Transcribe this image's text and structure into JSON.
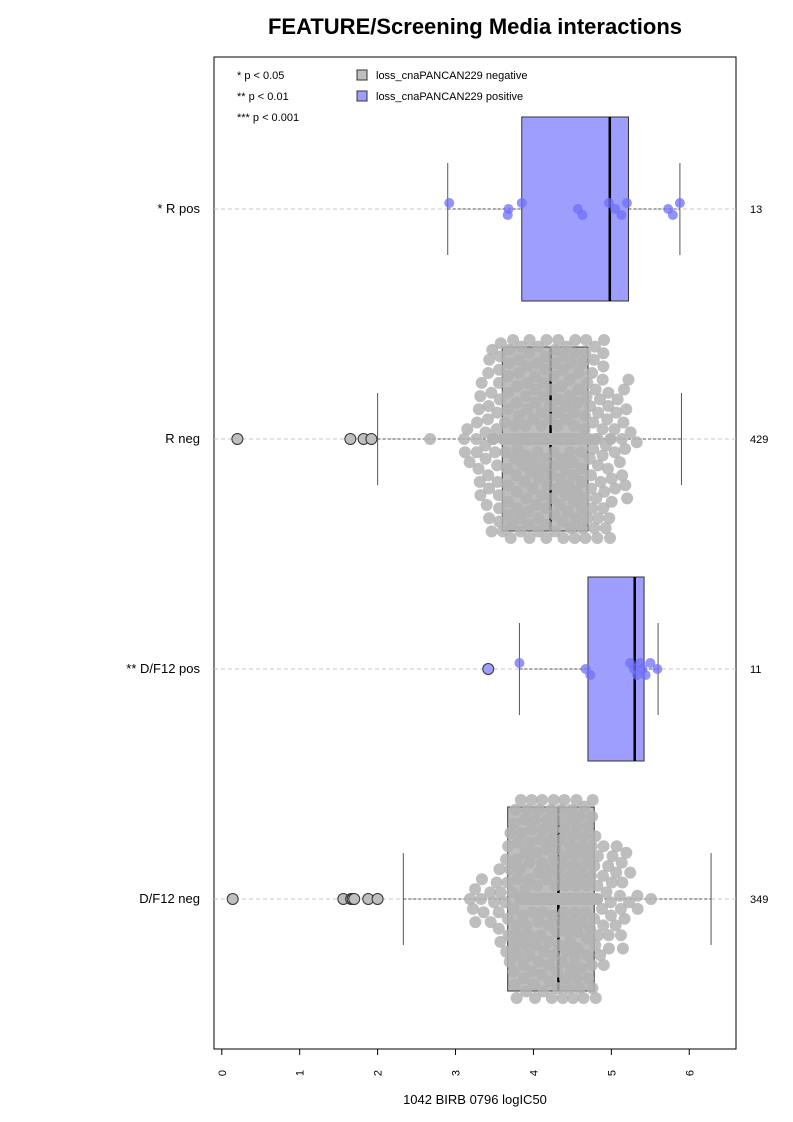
{
  "chart_data": {
    "type": "boxplot-beeswarm",
    "title": "FEATURE/Screening Media interactions",
    "xlabel": "1042 BIRB 0796 logIC50",
    "xlim": [
      -0.1,
      6.6
    ],
    "x_ticks": [
      0,
      1,
      2,
      3,
      4,
      5,
      6
    ],
    "grid": false,
    "legend": {
      "position": "top-left",
      "significance": [
        "* p < 0.05",
        "** p < 0.01",
        "*** p < 0.001"
      ],
      "entries": [
        {
          "label": "loss_cnaPANCAN229 negative",
          "color": "#bebebe"
        },
        {
          "label": "loss_cnaPANCAN229 positive",
          "color": "#9e9eff"
        }
      ]
    },
    "groups": [
      {
        "label": "* R pos",
        "n": "13",
        "status": "positive",
        "whisker_low": 2.9,
        "q1": 3.85,
        "median": 4.98,
        "q3": 5.22,
        "whisker_high": 5.88,
        "outliers": [],
        "points": [
          2.92,
          3.68,
          3.67,
          3.85,
          4.57,
          4.63,
          4.97,
          5.05,
          5.13,
          5.2,
          5.73,
          5.79,
          5.88
        ]
      },
      {
        "label": "R neg",
        "n": "429",
        "status": "negative",
        "whisker_low": 2.0,
        "q1": 3.6,
        "median": 4.22,
        "q3": 4.7,
        "whisker_high": 5.9,
        "outliers": [
          0.2,
          1.65,
          1.82,
          1.92
        ],
        "point_summary": {
          "count": 429,
          "min": 2.0,
          "max": 5.9,
          "center": 4.2
        }
      },
      {
        "label": "** D/F12 pos",
        "n": "11",
        "status": "positive",
        "whisker_low": 3.82,
        "q1": 4.7,
        "median": 5.3,
        "q3": 5.42,
        "whisker_high": 5.6,
        "outliers": [
          3.42
        ],
        "points": [
          3.82,
          4.67,
          4.73,
          5.24,
          5.29,
          5.33,
          5.37,
          5.4,
          5.44,
          5.5,
          5.59
        ]
      },
      {
        "label": "D/F12 neg",
        "n": "349",
        "status": "negative",
        "whisker_low": 2.33,
        "q1": 3.67,
        "median": 4.32,
        "q3": 4.78,
        "whisker_high": 6.28,
        "outliers": [
          0.14,
          1.56,
          1.66,
          1.68,
          1.7,
          1.88,
          2.0
        ],
        "point_summary": {
          "count": 349,
          "min": 2.33,
          "max": 6.28,
          "center": 4.3
        }
      }
    ]
  },
  "colors": {
    "negative_fill": "#bebebe",
    "negative_point": "#b3b3b3",
    "positive_fill": "#9e9eff",
    "positive_point": "#6f6ff7",
    "axis": "#000000",
    "dash": "#c8c8c8"
  }
}
